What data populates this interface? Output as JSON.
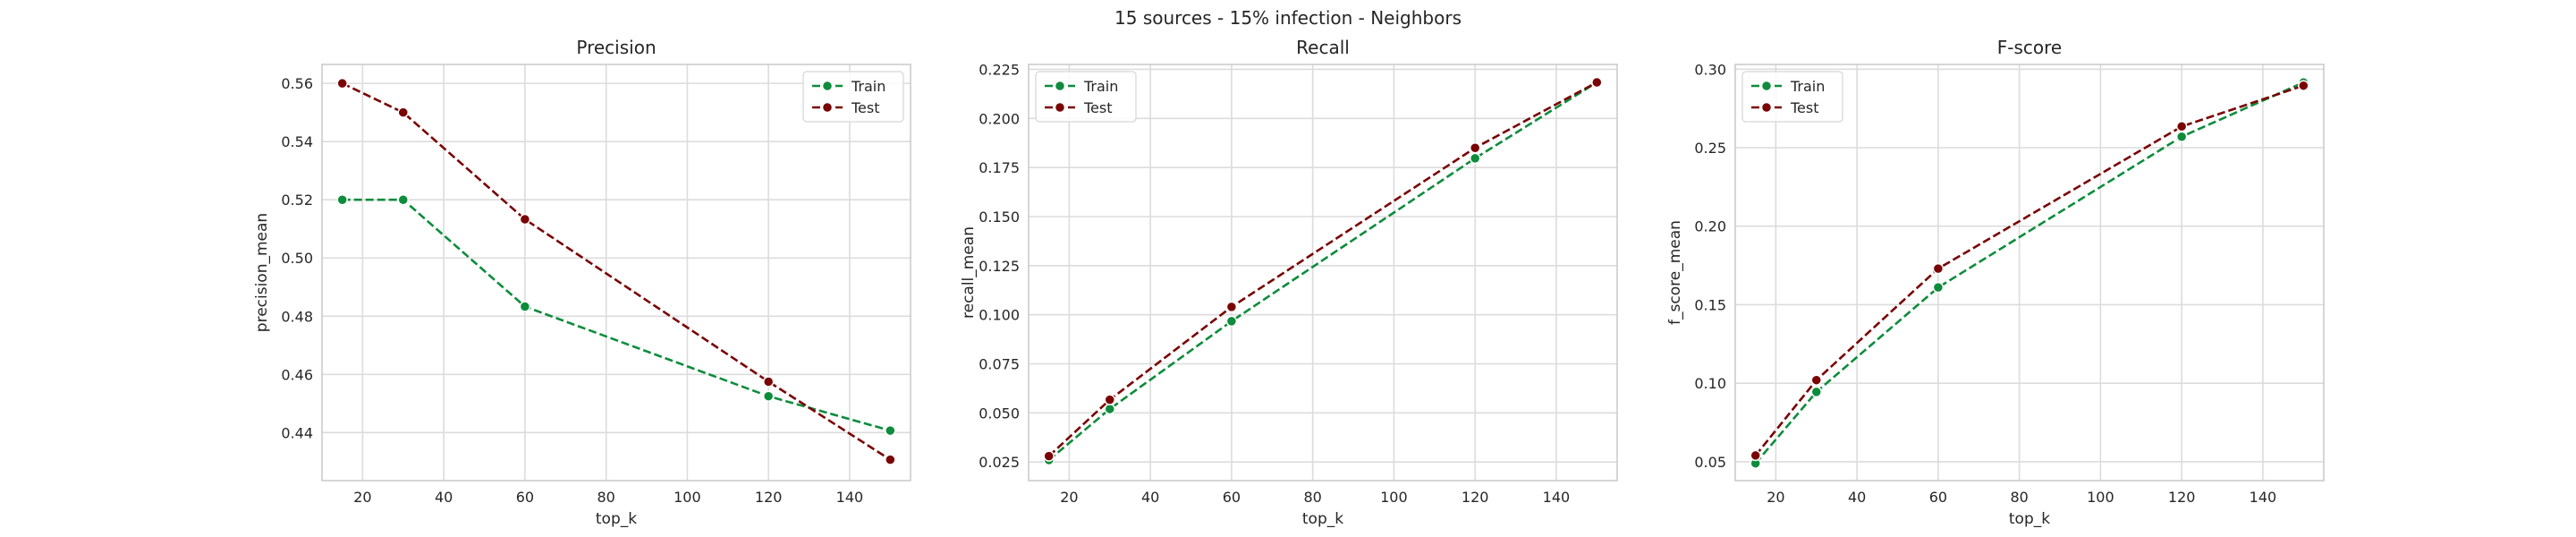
{
  "figure": {
    "suptitle": "15 sources - 15% infection - Neighbors"
  },
  "chart_data": [
    {
      "type": "line",
      "title": "Precision",
      "xlabel": "top_k",
      "ylabel": "precision_mean",
      "x": [
        15,
        30,
        60,
        120,
        150
      ],
      "xlim": [
        10,
        155
      ],
      "ylim": [
        0.4235,
        0.5665
      ],
      "xticks": [
        20,
        40,
        60,
        80,
        100,
        120,
        140
      ],
      "yticks": [
        0.44,
        0.46,
        0.48,
        0.5,
        0.52,
        0.54,
        0.56
      ],
      "ytick_labels": [
        "0.44",
        "0.46",
        "0.48",
        "0.50",
        "0.52",
        "0.54",
        "0.56"
      ],
      "grid": true,
      "legend_position": "top-right",
      "series": [
        {
          "name": "Train",
          "color": "#0d8c3c",
          "values": [
            0.52,
            0.52,
            0.4833,
            0.4525,
            0.4407
          ]
        },
        {
          "name": "Test",
          "color": "#7a0404",
          "values": [
            0.56,
            0.55,
            0.5133,
            0.4575,
            0.4307
          ]
        }
      ]
    },
    {
      "type": "line",
      "title": "Recall",
      "xlabel": "top_k",
      "ylabel": "recall_mean",
      "x": [
        15,
        30,
        60,
        120,
        150
      ],
      "xlim": [
        10,
        155
      ],
      "ylim": [
        0.0155,
        0.2275
      ],
      "xticks": [
        20,
        40,
        60,
        80,
        100,
        120,
        140
      ],
      "yticks": [
        0.025,
        0.05,
        0.075,
        0.1,
        0.125,
        0.15,
        0.175,
        0.2,
        0.225
      ],
      "ytick_labels": [
        "0.025",
        "0.050",
        "0.075",
        "0.100",
        "0.125",
        "0.150",
        "0.175",
        "0.200",
        "0.225"
      ],
      "grid": true,
      "legend_position": "top-left",
      "series": [
        {
          "name": "Train",
          "color": "#0d8c3c",
          "values": [
            0.026,
            0.052,
            0.0967,
            0.1797,
            0.2184
          ]
        },
        {
          "name": "Test",
          "color": "#7a0404",
          "values": [
            0.028,
            0.0567,
            0.104,
            0.185,
            0.2184
          ]
        }
      ]
    },
    {
      "type": "line",
      "title": "F-score",
      "xlabel": "top_k",
      "ylabel": "f_score_mean",
      "x": [
        15,
        30,
        60,
        120,
        150
      ],
      "xlim": [
        10,
        155
      ],
      "ylim": [
        0.038,
        0.303
      ],
      "xticks": [
        20,
        40,
        60,
        80,
        100,
        120,
        140
      ],
      "yticks": [
        0.05,
        0.1,
        0.15,
        0.2,
        0.25,
        0.3
      ],
      "ytick_labels": [
        "0.05",
        "0.10",
        "0.15",
        "0.20",
        "0.25",
        "0.30"
      ],
      "grid": true,
      "legend_position": "top-left",
      "series": [
        {
          "name": "Train",
          "color": "#0d8c3c",
          "values": [
            0.049,
            0.0945,
            0.161,
            0.257,
            0.2915
          ]
        },
        {
          "name": "Test",
          "color": "#7a0404",
          "values": [
            0.054,
            0.102,
            0.173,
            0.2635,
            0.2895
          ]
        }
      ]
    }
  ]
}
